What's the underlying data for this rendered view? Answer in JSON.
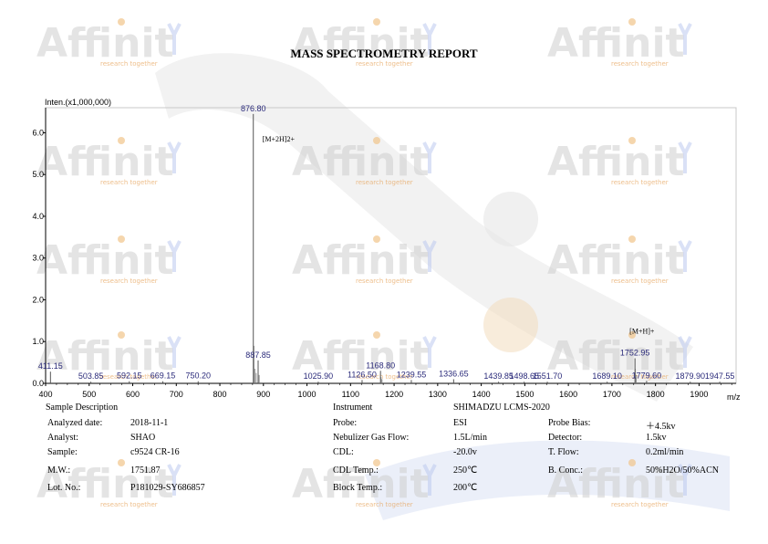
{
  "report_title": "MASS SPECTROMETRY REPORT",
  "watermark": {
    "brand": "Affinit",
    "tagline": "research together"
  },
  "chart_data": {
    "type": "bar",
    "ylabel": "Inten.(x1,000,000)",
    "xlabel": "m/z",
    "xlim": [
      400,
      1985
    ],
    "ylim": [
      0,
      6.6
    ],
    "xticks": [
      400,
      500,
      600,
      700,
      800,
      900,
      1000,
      1100,
      1200,
      1300,
      1400,
      1500,
      1600,
      1700,
      1800,
      1900
    ],
    "yticks": [
      "0.0",
      "1.0",
      "2.0",
      "3.0",
      "4.0",
      "5.0",
      "6.0"
    ],
    "grid": false,
    "peaks": [
      {
        "x": 411.15,
        "y": 0.28,
        "label": "411.15"
      },
      {
        "x": 503.85,
        "y": 0.04,
        "label": "503.85"
      },
      {
        "x": 592.15,
        "y": 0.05,
        "label": "592.15"
      },
      {
        "x": 669.15,
        "y": 0.05,
        "label": "669.15"
      },
      {
        "x": 750.2,
        "y": 0.05,
        "label": "750.20"
      },
      {
        "x": 876.8,
        "y": 6.45,
        "label": "876.80"
      },
      {
        "x": 887.85,
        "y": 0.55,
        "label": "887.85"
      },
      {
        "x": 1025.9,
        "y": 0.04,
        "label": "1025.90"
      },
      {
        "x": 1126.5,
        "y": 0.08,
        "label": "1126.50"
      },
      {
        "x": 1168.8,
        "y": 0.3,
        "label": "1168.80"
      },
      {
        "x": 1239.55,
        "y": 0.08,
        "label": "1239.55"
      },
      {
        "x": 1336.65,
        "y": 0.1,
        "label": "1336.65"
      },
      {
        "x": 1439.85,
        "y": 0.04,
        "label": "1439.85"
      },
      {
        "x": 1498.65,
        "y": 0.04,
        "label": "1498.65"
      },
      {
        "x": 1551.7,
        "y": 0.04,
        "label": "1551.70"
      },
      {
        "x": 1689.1,
        "y": 0.04,
        "label": "1689.10"
      },
      {
        "x": 1752.95,
        "y": 0.6,
        "label": "1752.95"
      },
      {
        "x": 1779.6,
        "y": 0.06,
        "label": "1779.60"
      },
      {
        "x": 1879.9,
        "y": 0.04,
        "label": "1879.90"
      },
      {
        "x": 1947.55,
        "y": 0.04,
        "label": "1947.55"
      }
    ],
    "annotations": [
      {
        "text": "[M+2H]2+",
        "x": 876.8
      },
      {
        "text": "[M+H]+",
        "x": 1752.95
      }
    ]
  },
  "sample": {
    "heading": "Sample Description",
    "rows": [
      {
        "label": "Analyzed date:",
        "value": "2018-11-1"
      },
      {
        "label": "Analyst:",
        "value": "SHAO"
      },
      {
        "label": "Sample:",
        "value": "c9524 CR-16"
      },
      {
        "label": "M.W.:",
        "value": "1751.87"
      },
      {
        "label": "Lot. No.:",
        "value": "P181029-SY686857"
      }
    ]
  },
  "instrument": {
    "heading": "Instrument",
    "model": "SHIMADZU LCMS-2020",
    "rows": [
      {
        "label": "Probe:",
        "value": "ESI"
      },
      {
        "label": "Nebulizer Gas Flow:",
        "value": "1.5L/min"
      },
      {
        "label": "CDL:",
        "value": "-20.0v"
      },
      {
        "label": "CDL Temp.:",
        "value": "250℃"
      },
      {
        "label": "Block Temp.:",
        "value": "200℃"
      }
    ],
    "rows_right": [
      {
        "label": "Probe Bias:",
        "value": "＋4.5kv"
      },
      {
        "label": "Detector:",
        "value": "1.5kv"
      },
      {
        "label": "T. Flow:",
        "value": "0.2ml/min"
      },
      {
        "label": "B. Conc.:",
        "value": "50%H2O/50%ACN"
      }
    ]
  }
}
